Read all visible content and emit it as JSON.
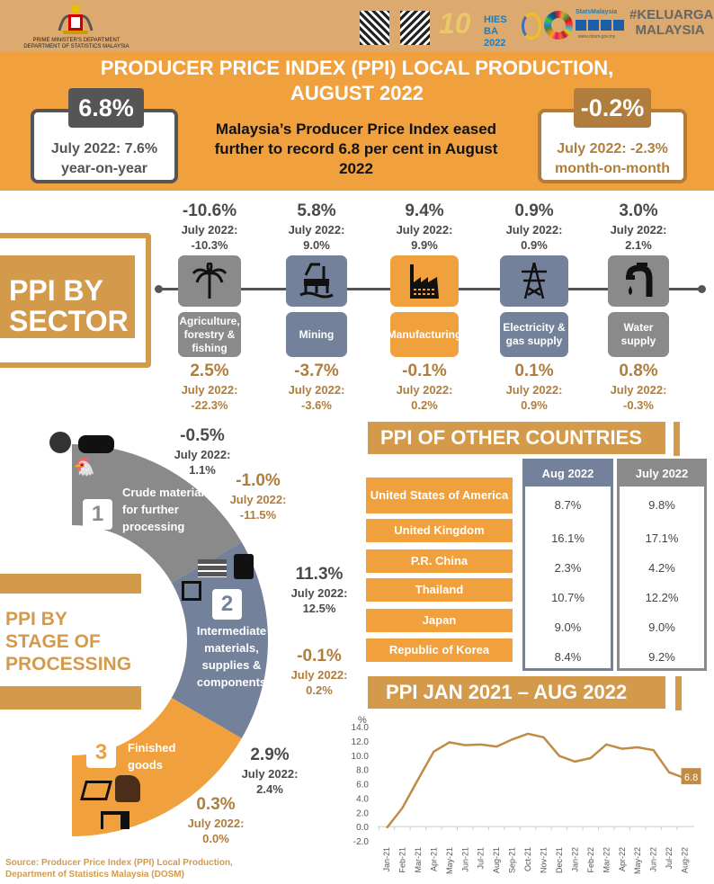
{
  "header": {
    "dept_line1": "PRIME MINISTER'S DEPARTMENT",
    "dept_line2": "DEPARTMENT OF STATISTICS MALAYSIA",
    "logos_text": [
      "10",
      "HIES BA 2022",
      "StatsMalaysia",
      "#KELUARGA MALAYSIA"
    ],
    "website": "www.dosm.gov.my"
  },
  "title": {
    "line1": "PRODUCER PRICE INDEX (PPI) LOCAL PRODUCTION,",
    "line2": "AUGUST 2022"
  },
  "yoy": {
    "value": "6.8%",
    "prev": "July 2022: 7.6%",
    "label": "year-on-year"
  },
  "mom": {
    "value": "-0.2%",
    "prev": "July 2022: -2.3%",
    "label": "month-on-month"
  },
  "summary": "Malaysia’s  Producer Price Index eased further to record 6.8 per cent in August 2022",
  "sector_title": [
    "PPI BY",
    "SECTOR"
  ],
  "sectors": [
    {
      "name": "Agriculture, forestry & fishing",
      "icon": "palm-tree-icon",
      "yoy": "-10.6%",
      "yoy_prev": "July 2022:",
      "yoy_prev_val": "-10.3%",
      "mom": "2.5%",
      "mom_prev": "July 2022:",
      "mom_prev_val": "-22.3%",
      "color": "#8a8a8a"
    },
    {
      "name": "Mining",
      "icon": "oil-rig-icon",
      "yoy": "5.8%",
      "yoy_prev": "July 2022:",
      "yoy_prev_val": "9.0%",
      "mom": "-3.7%",
      "mom_prev": "July 2022:",
      "mom_prev_val": "-3.6%",
      "color": "#74819a"
    },
    {
      "name": "Manufacturing",
      "icon": "factory-icon",
      "yoy": "9.4%",
      "yoy_prev": "July 2022:",
      "yoy_prev_val": "9.9%",
      "mom": "-0.1%",
      "mom_prev": "July 2022:",
      "mom_prev_val": "0.2%",
      "color": "#f0a03c"
    },
    {
      "name": "Electricity & gas supply",
      "icon": "power-tower-icon",
      "yoy": "0.9%",
      "yoy_prev": "July 2022:",
      "yoy_prev_val": "0.9%",
      "mom": "0.1%",
      "mom_prev": "July 2022:",
      "mom_prev_val": "0.9%",
      "color": "#74819a"
    },
    {
      "name": "Water supply",
      "icon": "water-tap-icon",
      "yoy": "3.0%",
      "yoy_prev": "July 2022:",
      "yoy_prev_val": "2.1%",
      "mom": "0.8%",
      "mom_prev": "July 2022:",
      "mom_prev_val": "-0.3%",
      "color": "#8a8a8a"
    }
  ],
  "stage_title": [
    "PPI BY",
    "STAGE OF",
    "PROCESSING"
  ],
  "stages": [
    {
      "num": "1",
      "name": "Crude materials for further processing",
      "yoy": "-0.5%",
      "yoy_prev": "July 2022:",
      "yoy_prev_val": "1.1%",
      "mom": "-1.0%",
      "mom_prev": "July 2022:",
      "mom_prev_val": "-11.5%",
      "color": "#8a8a8a"
    },
    {
      "num": "2",
      "name": "Intermediate materials, supplies & components",
      "yoy": "11.3%",
      "yoy_prev": "July 2022:",
      "yoy_prev_val": "12.5%",
      "mom": "-0.1%",
      "mom_prev": "July 2022:",
      "mom_prev_val": "0.2%",
      "color": "#74819a"
    },
    {
      "num": "3",
      "name": "Finished goods",
      "yoy": "2.9%",
      "yoy_prev": "July 2022:",
      "yoy_prev_val": "2.4%",
      "mom": "0.3%",
      "mom_prev": "July 2022:",
      "mom_prev_val": "0.0%",
      "color": "#f0a03c"
    }
  ],
  "countries": {
    "title": "PPI OF OTHER COUNTRIES",
    "col_aug": "Aug 2022",
    "col_jul": "July 2022",
    "rows": [
      {
        "name": "United States of America",
        "aug": "8.7%",
        "jul": "9.8%"
      },
      {
        "name": "United Kingdom",
        "aug": "16.1%",
        "jul": "17.1%"
      },
      {
        "name": "P.R. China",
        "aug": "2.3%",
        "jul": "4.2%"
      },
      {
        "name": "Thailand",
        "aug": "10.7%",
        "jul": "12.2%"
      },
      {
        "name": "Japan",
        "aug": "9.0%",
        "jul": "9.0%"
      },
      {
        "name": "Republic of Korea",
        "aug": "8.4%",
        "jul": "9.2%"
      }
    ]
  },
  "chart_data": {
    "type": "line",
    "title": "PPI JAN 2021 – AUG 2022",
    "ylabel": "%",
    "ylim": [
      -2,
      14
    ],
    "yticks": [
      "14.0",
      "12.0",
      "10.0",
      "8.0",
      "6.0",
      "4.0",
      "2.0",
      "0.0",
      "-2.0"
    ],
    "categories": [
      "Jan-21",
      "Feb-21",
      "Mar-21",
      "Apr-21",
      "May-21",
      "Jun-21",
      "Jul-21",
      "Aug-21",
      "Sep-21",
      "Oct-21",
      "Nov-21",
      "Dec-21",
      "Jan-22",
      "Feb-22",
      "Mar-22",
      "Apr-22",
      "May-22",
      "Jun-22",
      "Jul-22",
      "Aug-22"
    ],
    "values": [
      -0.2,
      2.6,
      6.6,
      10.5,
      11.8,
      11.4,
      11.5,
      11.2,
      12.2,
      13.0,
      12.5,
      9.9,
      9.1,
      9.6,
      11.5,
      10.9,
      11.1,
      10.7,
      7.6,
      6.8
    ],
    "last_label": "6.8",
    "color": "#c08b45"
  },
  "source": [
    "Source: Producer Price Index (PPI) Local Production,",
    "Department of Statistics Malaysia (DOSM)"
  ]
}
